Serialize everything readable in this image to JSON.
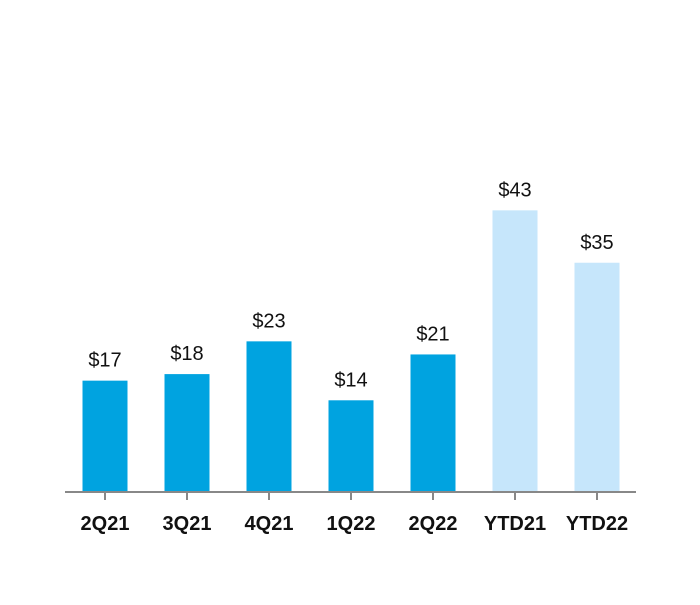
{
  "chart_data": {
    "type": "bar",
    "categories": [
      "2Q21",
      "3Q21",
      "4Q21",
      "1Q22",
      "2Q22",
      "YTD21",
      "YTD22"
    ],
    "values": [
      17,
      18,
      23,
      14,
      21,
      43,
      35
    ],
    "value_labels": [
      "$17",
      "$18",
      "$23",
      "$14",
      "$21",
      "$43",
      "$35"
    ],
    "bar_colors": [
      "#00a3e0",
      "#00a3e0",
      "#00a3e0",
      "#00a3e0",
      "#00a3e0",
      "#c6e6fb",
      "#c6e6fb"
    ],
    "title": "",
    "xlabel": "",
    "ylabel": "",
    "ylim": [
      0,
      45
    ],
    "grid": false,
    "legend": "none"
  },
  "colors": {
    "quarter_bar": "#00a3e0",
    "ytd_bar": "#c6e6fb",
    "axis": "#888888",
    "text": "#111111"
  }
}
